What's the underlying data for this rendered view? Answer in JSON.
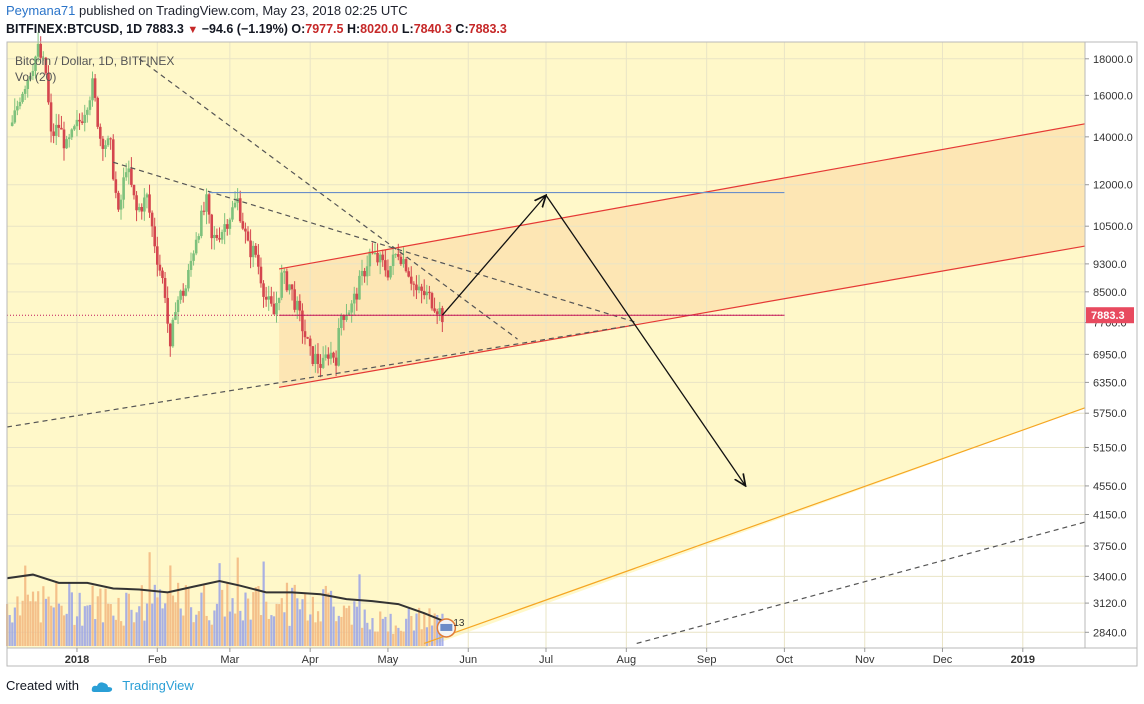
{
  "header": {
    "user": "Peymana71",
    "published_text": "published on TradingView.com, May 23, 2018 02:25 UTC",
    "symbol_line": "BITFINEX:BTCUSD, 1D",
    "last": "7883.3",
    "change": "−94.6 (−1.19%)",
    "o_label": "O:",
    "o_val": "7977.5",
    "h_label": "H:",
    "h_val": "8020.0",
    "l_label": "L:",
    "l_val": "7840.3",
    "c_label": "C:",
    "c_val": "7883.3"
  },
  "footer": {
    "created_with": "Created with",
    "brand": "TradingView"
  },
  "chart_data": {
    "type": "candlestick",
    "legend_symbol": "Bitcoin / Dollar, 1D, BITFINEX",
    "legend_indicator": "Vol (20)",
    "y_scale": "log",
    "ylim": [
      2700,
      19000
    ],
    "xlim": [
      "2017-12-05",
      "2019-01-25"
    ],
    "y_ticks": [
      18000,
      16000,
      14000,
      12000,
      10500,
      9300,
      8500,
      7700,
      6950,
      6350,
      5750,
      5150,
      4550,
      4150,
      3750,
      3400,
      3120,
      2840
    ],
    "last_price": 7883.3,
    "last_price_label": "7883.3",
    "x_ticks": [
      {
        "date": "2018-01-01",
        "label": "2018",
        "bold": true
      },
      {
        "date": "2018-02-01",
        "label": "Feb"
      },
      {
        "date": "2018-03-01",
        "label": "Mar"
      },
      {
        "date": "2018-04-01",
        "label": "Apr"
      },
      {
        "date": "2018-05-01",
        "label": "May"
      },
      {
        "date": "2018-06-01",
        "label": "Jun"
      },
      {
        "date": "2018-07-01",
        "label": "Jul"
      },
      {
        "date": "2018-08-01",
        "label": "Aug"
      },
      {
        "date": "2018-09-01",
        "label": "Sep"
      },
      {
        "date": "2018-10-01",
        "label": "Oct"
      },
      {
        "date": "2018-11-01",
        "label": "Nov"
      },
      {
        "date": "2018-12-01",
        "label": "Dec"
      },
      {
        "date": "2019-01-01",
        "label": "2019",
        "bold": true
      }
    ],
    "price_anchors": [
      [
        "2017-12-07",
        14500
      ],
      [
        "2017-12-10",
        16000
      ],
      [
        "2017-12-13",
        17000
      ],
      [
        "2017-12-17",
        18500
      ],
      [
        "2017-12-20",
        17200
      ],
      [
        "2017-12-22",
        14000
      ],
      [
        "2017-12-25",
        14500
      ],
      [
        "2017-12-28",
        13500
      ],
      [
        "2018-01-03",
        15000
      ],
      [
        "2018-01-07",
        16500
      ],
      [
        "2018-01-10",
        14000
      ],
      [
        "2018-01-14",
        13500
      ],
      [
        "2018-01-17",
        10800
      ],
      [
        "2018-01-20",
        12800
      ],
      [
        "2018-01-24",
        11000
      ],
      [
        "2018-01-28",
        11500
      ],
      [
        "2018-02-01",
        9500
      ],
      [
        "2018-02-04",
        8500
      ],
      [
        "2018-02-06",
        6950
      ],
      [
        "2018-02-08",
        8200
      ],
      [
        "2018-02-12",
        8600
      ],
      [
        "2018-02-16",
        10200
      ],
      [
        "2018-02-20",
        11300
      ],
      [
        "2018-02-22",
        10000
      ],
      [
        "2018-02-26",
        10400
      ],
      [
        "2018-03-04",
        11400
      ],
      [
        "2018-03-08",
        9800
      ],
      [
        "2018-03-11",
        9600
      ],
      [
        "2018-03-15",
        8300
      ],
      [
        "2018-03-18",
        7900
      ],
      [
        "2018-03-21",
        8900
      ],
      [
        "2018-03-24",
        8700
      ],
      [
        "2018-03-29",
        7600
      ],
      [
        "2018-04-01",
        6950
      ],
      [
        "2018-04-06",
        6700
      ],
      [
        "2018-04-08",
        7000
      ],
      [
        "2018-04-11",
        6900
      ],
      [
        "2018-04-13",
        7900
      ],
      [
        "2018-04-17",
        8100
      ],
      [
        "2018-04-21",
        8900
      ],
      [
        "2018-04-24",
        9600
      ],
      [
        "2018-04-28",
        9350
      ],
      [
        "2018-05-01",
        9100
      ],
      [
        "2018-05-05",
        9700
      ],
      [
        "2018-05-08",
        9300
      ],
      [
        "2018-05-12",
        8500
      ],
      [
        "2018-05-16",
        8400
      ],
      [
        "2018-05-19",
        8200
      ],
      [
        "2018-05-22",
        7883
      ]
    ],
    "volume_ma": [
      [
        "2017-12-05",
        3380
      ],
      [
        "2017-12-15",
        3420
      ],
      [
        "2017-12-25",
        3330
      ],
      [
        "2018-01-05",
        3330
      ],
      [
        "2018-01-15",
        3270
      ],
      [
        "2018-01-25",
        3260
      ],
      [
        "2018-02-05",
        3230
      ],
      [
        "2018-02-15",
        3290
      ],
      [
        "2018-02-25",
        3350
      ],
      [
        "2018-03-05",
        3300
      ],
      [
        "2018-03-15",
        3230
      ],
      [
        "2018-03-25",
        3230
      ],
      [
        "2018-04-05",
        3210
      ],
      [
        "2018-04-15",
        3160
      ],
      [
        "2018-04-25",
        3140
      ],
      [
        "2018-05-05",
        3110
      ],
      [
        "2018-05-15",
        3020
      ],
      [
        "2018-05-22",
        2950
      ]
    ],
    "lines": [
      {
        "kind": "trend",
        "color": "#e53935",
        "dash": false,
        "from": [
          "2018-03-20",
          9150
        ],
        "to": [
          "2019-01-25",
          14600
        ]
      },
      {
        "kind": "trend",
        "color": "#e53935",
        "dash": false,
        "from": [
          "2018-03-20",
          6250
        ],
        "to": [
          "2019-01-25",
          9850
        ]
      },
      {
        "kind": "trend",
        "color": "#f5a623",
        "dash": false,
        "from": [
          "2018-05-15",
          2740
        ],
        "to": [
          "2019-01-25",
          5850
        ]
      },
      {
        "kind": "trend",
        "color": "#555555",
        "dash": true,
        "from": [
          "2018-01-25",
          18000
        ],
        "to": [
          "2018-06-20",
          7300
        ]
      },
      {
        "kind": "trend",
        "color": "#555555",
        "dash": true,
        "from": [
          "2018-01-15",
          12900
        ],
        "to": [
          "2018-08-05",
          7700
        ]
      },
      {
        "kind": "trend",
        "color": "#555555",
        "dash": true,
        "from": [
          "2017-12-05",
          5500
        ],
        "to": [
          "2018-08-05",
          7650
        ]
      },
      {
        "kind": "trend",
        "color": "#555555",
        "dash": true,
        "from": [
          "2018-08-05",
          2740
        ],
        "to": [
          "2019-01-25",
          4050
        ]
      },
      {
        "kind": "horizontal",
        "color": "#6b8fc9",
        "dash": false,
        "from": [
          "2018-02-21",
          11700
        ],
        "to": [
          "2018-10-01",
          11700
        ]
      },
      {
        "kind": "horizontal",
        "color": "#c2185b",
        "dash": false,
        "from": [
          "2017-12-05",
          7883
        ],
        "to": [
          "2018-10-01",
          7883
        ]
      }
    ],
    "arrows": [
      {
        "from": [
          "2018-05-22",
          7883
        ],
        "to": [
          "2018-07-01",
          11600
        ]
      },
      {
        "from": [
          "2018-07-01",
          11600
        ],
        "to": [
          "2018-09-16",
          4550
        ]
      }
    ],
    "volume_badge": "13"
  }
}
